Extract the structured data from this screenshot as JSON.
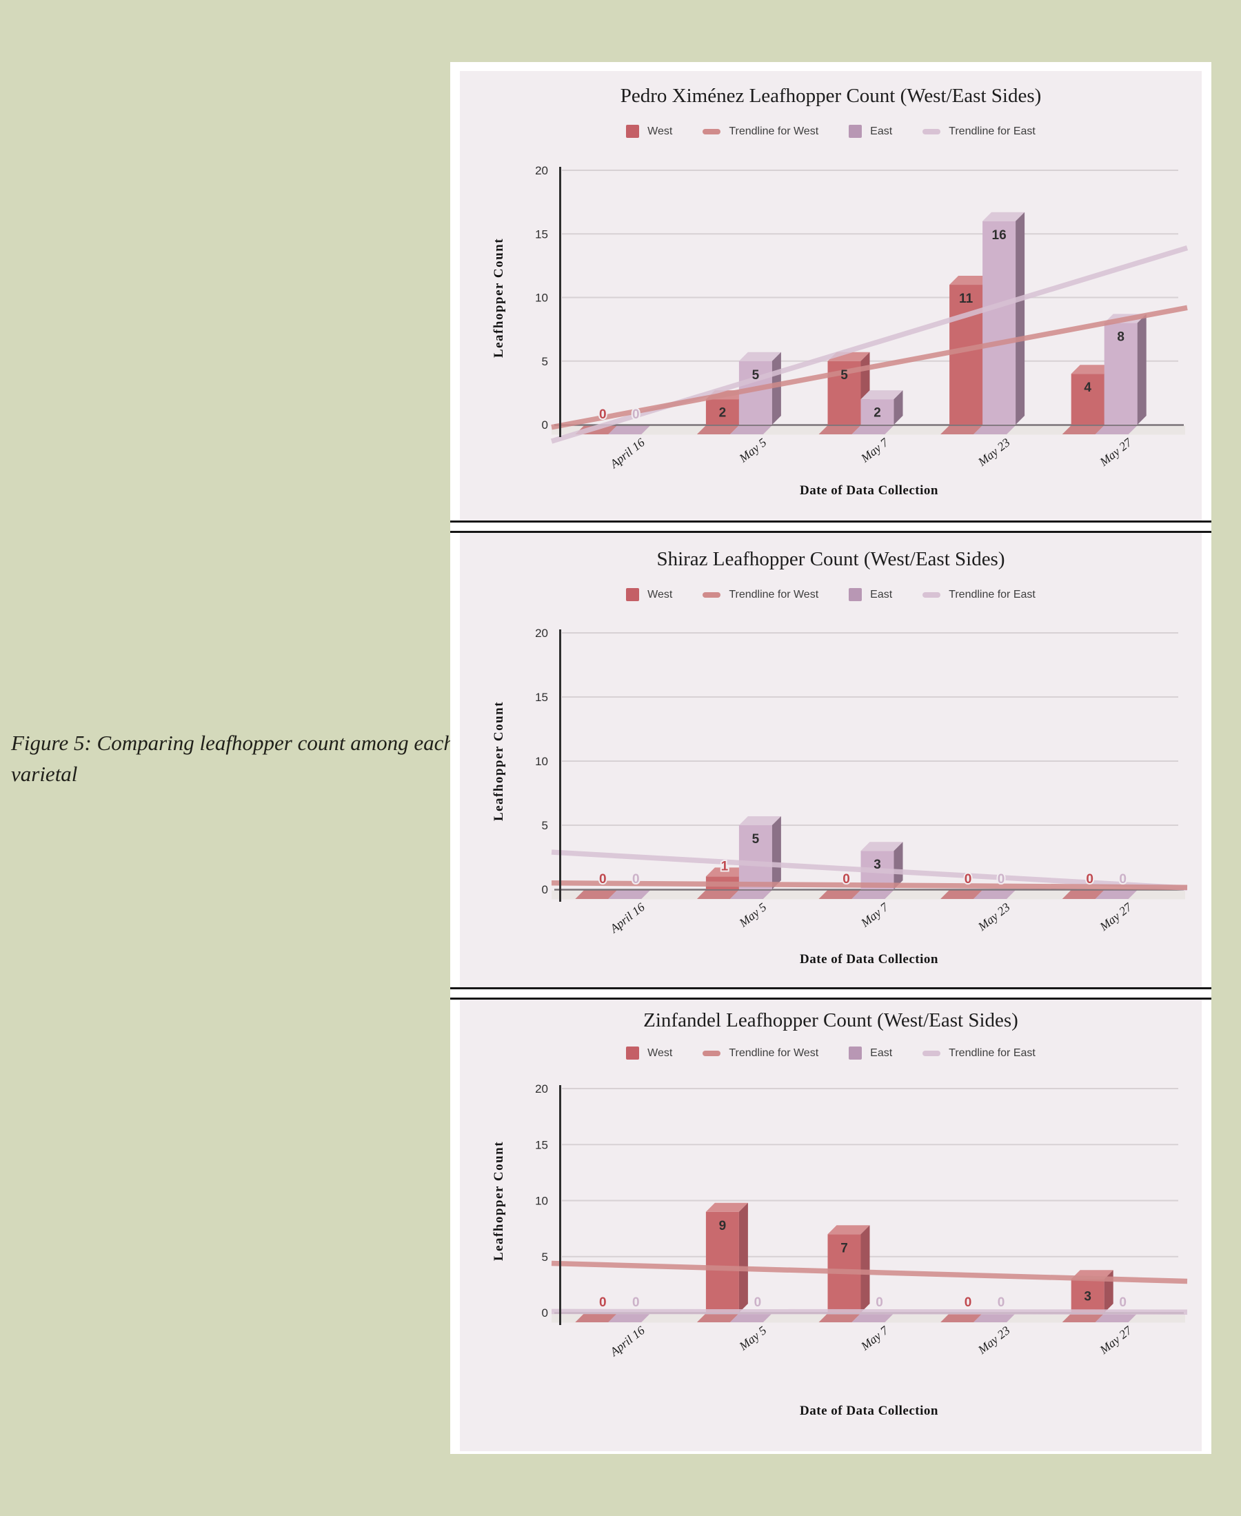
{
  "figure_caption": "Figure 5: Comparing leafhopper count among each varietal",
  "legend_labels": {
    "west": "West",
    "trendline_west": "Trendline for West",
    "east": "East",
    "trendline_east": "Trendline for East"
  },
  "axis": {
    "y_title": "Leafhopper Count",
    "x_title": "Date of Data Collection"
  },
  "colors": {
    "page_bg": "#d4d9bb",
    "card_bg": "#ffffff",
    "panel_bg": "#f2edf0",
    "separator": "#161616",
    "caption": "#20201a",
    "title": "#1d1d1d",
    "text": "#3e3e3e",
    "grid": "#d7d1d4",
    "axis_line": "#7a7378",
    "yaxis_line": "#2e2e2e",
    "tick_text": "#2f2f2f",
    "date_text": "#1d1d1d",
    "band": "#eae6e4",
    "west_front": "#c96a6e",
    "west_side": "#a1545b",
    "west_top": "#d68e90",
    "east_front": "#cfb2cb",
    "east_side": "#8b7187",
    "east_top": "#dcc9d9",
    "west_floor": "#cb8184",
    "east_floor": "#c8abc4",
    "trend_west": "#d08b8b",
    "trend_east": "#d8c2d4",
    "legend_west": "#c45f66",
    "legend_east": "#b897b4",
    "label_dark": "#2f2f2f",
    "zero_label_west": "#c0494f",
    "zero_label_east": "#ccb2c9"
  },
  "chart_data": [
    {
      "type": "bar",
      "title": "Pedro Ximénez Leafhopper Count (West/East Sides)",
      "categories": [
        "April 16",
        "May 5",
        "May 7",
        "May 23",
        "May 27"
      ],
      "series": [
        {
          "name": "West",
          "values": [
            0,
            2,
            5,
            11,
            4
          ]
        },
        {
          "name": "East",
          "values": [
            0,
            5,
            2,
            16,
            8
          ]
        }
      ],
      "trendlines": [
        {
          "name": "Trendline for West",
          "start": -0.2,
          "end": 9.2
        },
        {
          "name": "Trendline for East",
          "start": -1.3,
          "end": 13.9
        }
      ],
      "xlabel": "Date of Data Collection",
      "ylabel": "Leafhopper Count",
      "ylim": [
        0,
        20
      ],
      "yticks": [
        0,
        5,
        10,
        15,
        20
      ],
      "grid": true,
      "legend_position": "top"
    },
    {
      "type": "bar",
      "title": "Shiraz Leafhopper Count (West/East Sides)",
      "categories": [
        "April 16",
        "May 5",
        "May 7",
        "May 23",
        "May 27"
      ],
      "series": [
        {
          "name": "West",
          "values": [
            0,
            1,
            0,
            0,
            0
          ]
        },
        {
          "name": "East",
          "values": [
            0,
            5,
            3,
            0,
            0
          ]
        }
      ],
      "trendlines": [
        {
          "name": "Trendline for West",
          "start": 0.5,
          "end": 0.15
        },
        {
          "name": "Trendline for East",
          "start": 2.9,
          "end": 0.1
        }
      ],
      "xlabel": "Date of Data Collection",
      "ylabel": "Leafhopper Count",
      "ylim": [
        0,
        20
      ],
      "yticks": [
        0,
        5,
        10,
        15,
        20
      ],
      "grid": true,
      "legend_position": "top"
    },
    {
      "type": "bar",
      "title": "Zinfandel Leafhopper Count (West/East Sides)",
      "categories": [
        "April 16",
        "May 5",
        "May 7",
        "May 23",
        "May 27"
      ],
      "series": [
        {
          "name": "West",
          "values": [
            0,
            9,
            7,
            0,
            3
          ]
        },
        {
          "name": "East",
          "values": [
            0,
            0,
            0,
            0,
            0
          ]
        }
      ],
      "trendlines": [
        {
          "name": "Trendline for West",
          "start": 4.4,
          "end": 2.8
        },
        {
          "name": "Trendline for East",
          "start": 0.1,
          "end": 0.05
        }
      ],
      "xlabel": "Date of Data Collection",
      "ylabel": "Leafhopper Count",
      "ylim": [
        0,
        20
      ],
      "yticks": [
        0,
        5,
        10,
        15,
        20
      ],
      "grid": true,
      "legend_position": "top"
    }
  ]
}
